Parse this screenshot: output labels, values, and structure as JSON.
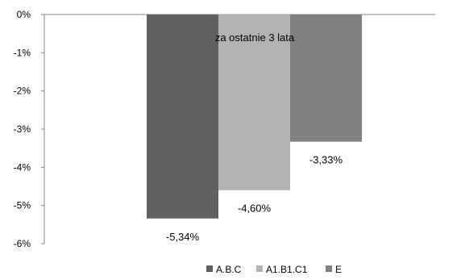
{
  "chart_data": {
    "type": "bar",
    "annotation": "za ostatnie 3 lata",
    "categories": [
      "za ostatnie 3 lata"
    ],
    "series": [
      {
        "name": "A.B.C",
        "values": [
          -5.34
        ],
        "label": "-5,34%",
        "color": "#606060"
      },
      {
        "name": "A1.B1.C1",
        "values": [
          -4.6
        ],
        "label": "-4,60%",
        "color": "#b3b3b3"
      },
      {
        "name": "E",
        "values": [
          -3.33
        ],
        "label": "-3,33%",
        "color": "#808080"
      }
    ],
    "y_ticks": [
      "0%",
      "-1%",
      "-2%",
      "-3%",
      "-4%",
      "-5%",
      "-6%"
    ],
    "ylim": [
      -6,
      0
    ],
    "grid": false,
    "legend_position": "bottom"
  }
}
